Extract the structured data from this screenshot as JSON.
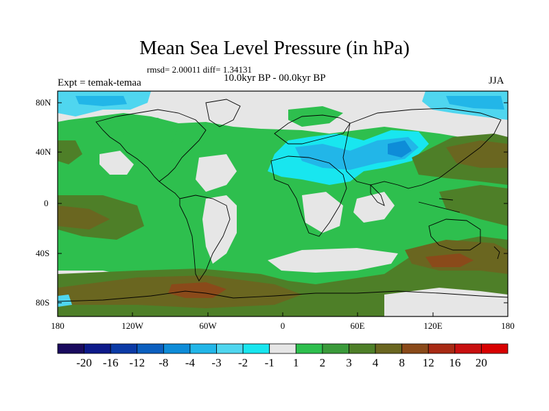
{
  "title": "Mean Sea Level Pressure (in hPa)",
  "stats_line": "rmsd= 2.00011 diff= 1.34131",
  "experiment": "Expt = temak-temaa",
  "period": "10.0kyr BP - 00.0kyr BP",
  "season": "JJA",
  "lat_labels": [
    "80N",
    "40N",
    "0",
    "40S",
    "80S"
  ],
  "lon_labels": [
    "180",
    "120W",
    "60W",
    "0",
    "60E",
    "120E",
    "180"
  ],
  "colorbar": {
    "labels": [
      "-20",
      "-16",
      "-12",
      "-8",
      "-4",
      "-3",
      "-2",
      "-1",
      "1",
      "2",
      "3",
      "4",
      "8",
      "12",
      "16",
      "20"
    ],
    "colors": [
      "#1a0a5e",
      "#0d1a8a",
      "#0b3aa6",
      "#0b5fbf",
      "#0e8cd8",
      "#22b6e8",
      "#4fd6ef",
      "#18e6ef",
      "#e6e6e6",
      "#2ebf4e",
      "#3a9a3a",
      "#4e7f28",
      "#6a6620",
      "#8a4a1a",
      "#a82a14",
      "#c81010",
      "#d80000"
    ]
  },
  "colors": {
    "land_outline": "#000000",
    "neutral": "#e6e6e6",
    "green_light": "#2ebf4e",
    "green_mid": "#3a9a3a",
    "olive": "#4e7f28",
    "brown": "#6a6620",
    "rust": "#8a4a1a",
    "cyan_light": "#18e6ef",
    "cyan_mid": "#4fd6ef",
    "blue_mid": "#22b6e8"
  }
}
